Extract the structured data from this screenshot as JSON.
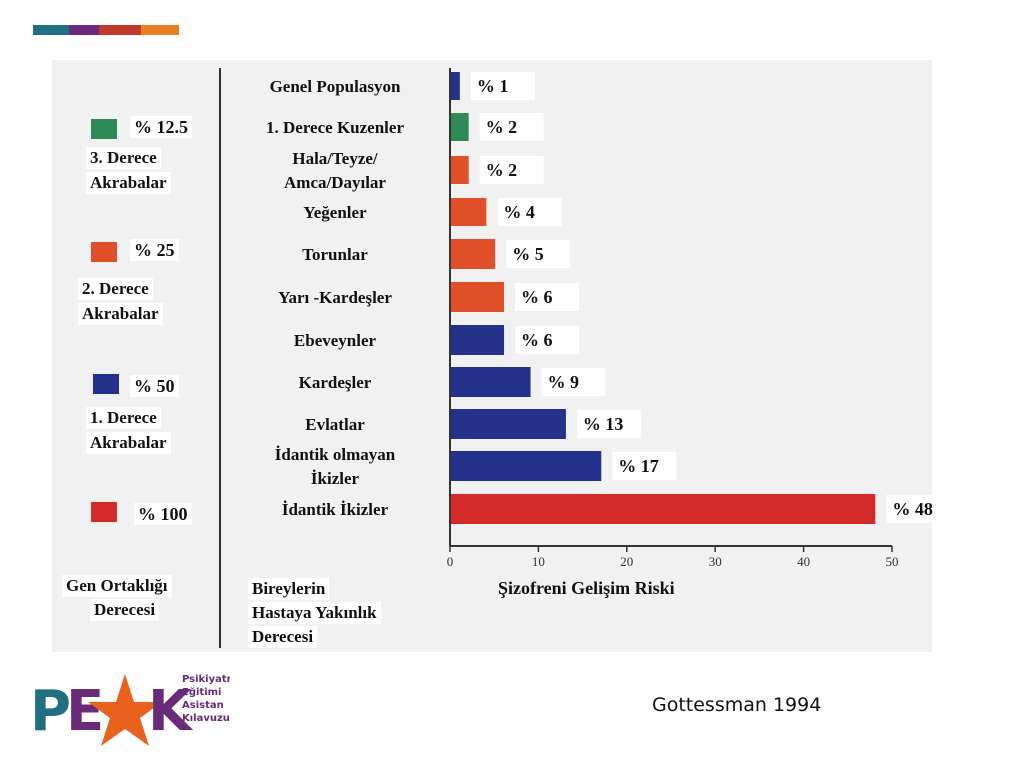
{
  "header_bar_colors": [
    "#1f6f80",
    "#6a2a7a",
    "#c0392b",
    "#e67e22"
  ],
  "legend": {
    "items": [
      {
        "percent": "% 12.5",
        "line1": "3. Derece",
        "line2": "Akrabalar",
        "color": "#2e8b57"
      },
      {
        "percent": "% 25",
        "line1": "2. Derece",
        "line2": "Akrabalar",
        "color": "#e0502a"
      },
      {
        "percent": "% 50",
        "line1": "1. Derece",
        "line2": "Akrabalar",
        "color": "#23318a"
      },
      {
        "percent": "% 100",
        "line1": "",
        "line2": "",
        "color": "#d42a2a"
      }
    ]
  },
  "column_titles": {
    "gene_share": [
      "Gen Ortaklığı",
      "Derecesi"
    ],
    "relation": [
      "Bireylerin",
      "Hastaya Yakınlık",
      "Derecesi"
    ],
    "risk": [
      "Şizofreni  Gelişim  Riski"
    ]
  },
  "chart_data": {
    "type": "bar",
    "orientation": "horizontal",
    "categories": [
      [
        "Genel  Populasyon"
      ],
      [
        "1. Derece Kuzenler"
      ],
      [
        "Hala/Teyze/",
        "Amca/Dayılar"
      ],
      [
        "Yeğenler"
      ],
      [
        "Torunlar"
      ],
      [
        "Yarı -Kardeşler"
      ],
      [
        "Ebeveynler"
      ],
      [
        "Kardeşler"
      ],
      [
        "Evlatlar"
      ],
      [
        "İdantik olmayan",
        "İkizler"
      ],
      [
        "İdantik  İkizler"
      ]
    ],
    "values": [
      1,
      2,
      2,
      4,
      5,
      6,
      6,
      9,
      13,
      17,
      48
    ],
    "value_labels": [
      "% 1",
      "% 2",
      "% 2",
      "% 4",
      "% 5",
      "% 6",
      "% 6",
      "% 9",
      "% 13",
      "% 17",
      "% 48"
    ],
    "colors": [
      "#23318a",
      "#2e8b57",
      "#e0502a",
      "#e0502a",
      "#e0502a",
      "#e0502a",
      "#23318a",
      "#23318a",
      "#23318a",
      "#23318a",
      "#d42a2a"
    ],
    "xlim": [
      0,
      50
    ],
    "xticks": [
      "0",
      "10",
      "20",
      "30",
      "40",
      "50"
    ],
    "xlabel": "Şizofreni  Gelişim  Riski",
    "grid": false
  },
  "citation": "Gottessman 1994",
  "logo": {
    "letters": "PEAK",
    "lines": [
      "Psikiyatri",
      "Eğitimi",
      "Asistan",
      "Kılavuzu"
    ],
    "colors": {
      "teal": "#1f6f80",
      "purple": "#6a2a7a",
      "orange": "#e8621e"
    }
  }
}
